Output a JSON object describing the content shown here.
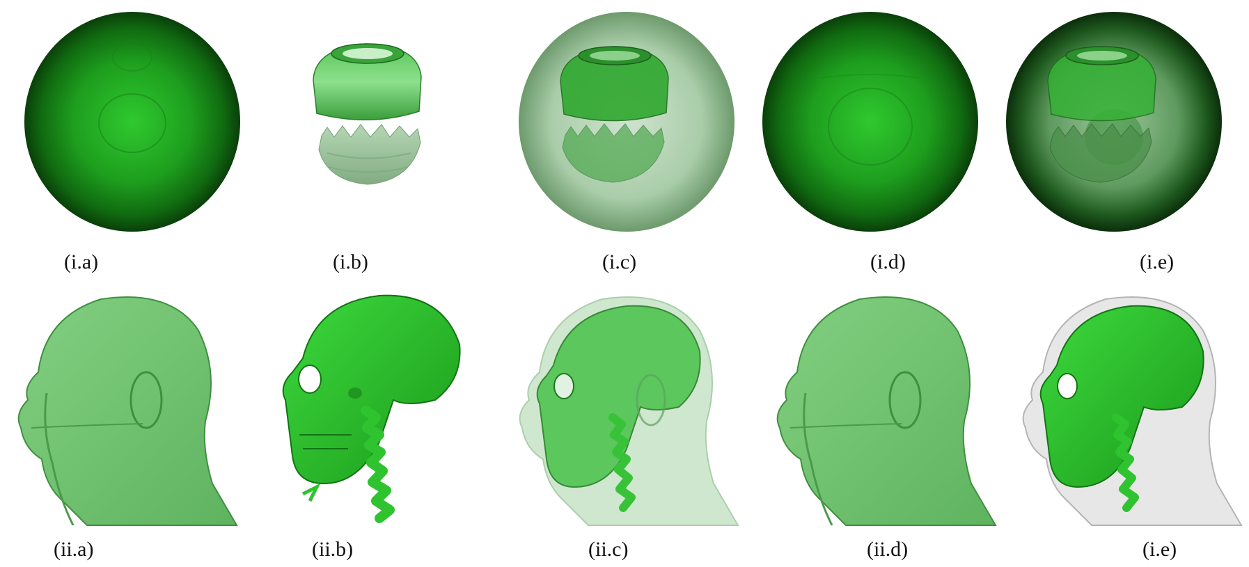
{
  "figure": {
    "row1": {
      "captions": [
        "(i.a)",
        "(i.b)",
        "(i.c)",
        "(i.d)",
        "(i.e)"
      ]
    },
    "row2": {
      "captions": [
        "(ii.a)",
        "(ii.b)",
        "(ii.c)",
        "(ii.d)",
        "(i.e)"
      ]
    }
  },
  "colors": {
    "green_dark": "#0a5a0a",
    "green_mid": "#1f9a1f",
    "green_bright": "#35d035",
    "green_skin": "#74c874",
    "gray_shell": "#b8b8b8"
  }
}
